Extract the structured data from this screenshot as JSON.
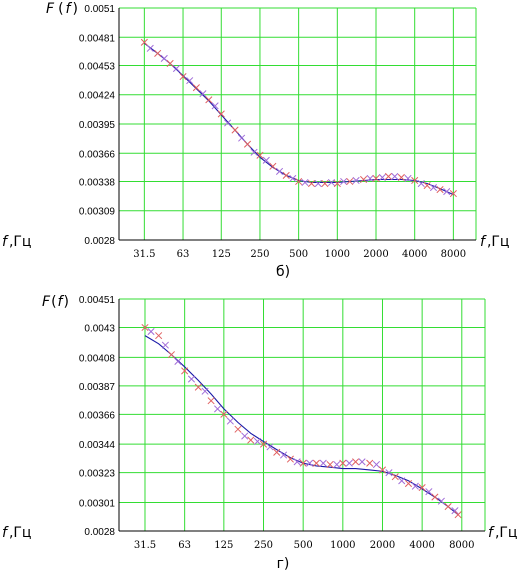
{
  "chart_data": [
    {
      "type": "scatter",
      "panel_label": "б)",
      "y_axis_label": {
        "func": "F",
        "paren_open": "(",
        "var": "f",
        "paren_close": ")"
      },
      "x_axis_label_left": {
        "var": "f",
        "unit": ",Гц"
      },
      "x_axis_label_right": {
        "var": "f",
        "unit": ",Гц"
      },
      "x_scale": "log2",
      "xlim": [
        20,
        12000
      ],
      "ylim": [
        0.0028,
        0.0051
      ],
      "y_ticks": [
        "0.0028",
        "0.00309",
        "0.00338",
        "0.00366",
        "0.00395",
        "0.00424",
        "0.00453",
        "0.00481",
        "0.0051"
      ],
      "x_ticks": [
        "31.5",
        "63",
        "125",
        "250",
        "500",
        "1000",
        "2000",
        "4000",
        "8000"
      ],
      "grid": true,
      "colors": {
        "grid": "#33dd33",
        "fit": "#1a1aa8",
        "marker_a": "#e06060",
        "marker_b": "#a06cd8",
        "axis": "#000000"
      },
      "series": [
        {
          "role": "fit-curve",
          "x": [
            31.5,
            40,
            50,
            63,
            80,
            100,
            125,
            160,
            200,
            250,
            315,
            400,
            500,
            630,
            800,
            1000,
            1250,
            1600,
            2000,
            2500,
            3150,
            4000,
            5000,
            6300,
            8000
          ],
          "y": [
            0.00475,
            0.00465,
            0.00455,
            0.00443,
            0.0043,
            0.00418,
            0.00404,
            0.00389,
            0.00375,
            0.00362,
            0.00352,
            0.00344,
            0.00339,
            0.00337,
            0.00337,
            0.00337,
            0.00338,
            0.00339,
            0.0034,
            0.0034,
            0.0034,
            0.00339,
            0.00336,
            0.00331,
            0.00325
          ]
        },
        {
          "role": "measured",
          "marker": "x",
          "x": [
            31.5,
            35,
            40,
            45,
            50,
            56,
            63,
            71,
            80,
            90,
            100,
            112,
            125,
            140,
            160,
            180,
            200,
            225,
            250,
            280,
            315,
            355,
            400,
            450,
            500,
            560,
            630,
            710,
            800,
            900,
            1000,
            1120,
            1250,
            1400,
            1600,
            1800,
            2000,
            2240,
            2500,
            2800,
            3150,
            3550,
            4000,
            4500,
            5000,
            5600,
            6300,
            7100,
            8000
          ],
          "y": [
            0.00476,
            0.0047,
            0.00465,
            0.0046,
            0.00455,
            0.0045,
            0.00442,
            0.00438,
            0.00431,
            0.00425,
            0.00419,
            0.00413,
            0.00405,
            0.00396,
            0.00389,
            0.00381,
            0.00375,
            0.00367,
            0.00364,
            0.00359,
            0.00353,
            0.00348,
            0.00344,
            0.00341,
            0.00338,
            0.00337,
            0.00336,
            0.00336,
            0.00336,
            0.00337,
            0.00336,
            0.00338,
            0.00338,
            0.00339,
            0.0034,
            0.00341,
            0.00341,
            0.00342,
            0.00343,
            0.00343,
            0.00342,
            0.00341,
            0.00339,
            0.00336,
            0.00334,
            0.00332,
            0.0033,
            0.00328,
            0.00326
          ]
        }
      ]
    },
    {
      "type": "scatter",
      "panel_label": "г)",
      "y_axis_label": {
        "func": "F",
        "paren_open": "(",
        "var": "f",
        "paren_close": ")"
      },
      "x_axis_label_left": {
        "var": "f",
        "unit": ",Гц"
      },
      "x_axis_label_right": {
        "var": "f",
        "unit": ",Гц"
      },
      "x_scale": "log2",
      "xlim": [
        20,
        12000
      ],
      "ylim": [
        0.0028,
        0.00451
      ],
      "y_ticks": [
        "0.0028",
        "0.00301",
        "0.00323",
        "0.00344",
        "0.00366",
        "0.00387",
        "0.00408",
        "0.0043",
        "0.00451"
      ],
      "x_ticks": [
        "31.5",
        "63",
        "125",
        "250",
        "500",
        "1000",
        "2000",
        "4000",
        "8000"
      ],
      "grid": true,
      "colors": {
        "grid": "#33dd33",
        "fit": "#1a1aa8",
        "marker_a": "#e06060",
        "marker_b": "#a06cd8",
        "axis": "#000000"
      },
      "series": [
        {
          "role": "fit-curve",
          "x": [
            31.5,
            40,
            50,
            63,
            80,
            100,
            125,
            160,
            200,
            250,
            315,
            400,
            500,
            630,
            800,
            1000,
            1250,
            1600,
            2000,
            2500,
            3150,
            4000,
            5000,
            6300,
            7500
          ],
          "y": [
            0.00424,
            0.00418,
            0.0041,
            0.00401,
            0.00391,
            0.00381,
            0.0037,
            0.0036,
            0.00352,
            0.00346,
            0.0034,
            0.00334,
            0.0033,
            0.00328,
            0.00327,
            0.00326,
            0.00326,
            0.00325,
            0.00324,
            0.00321,
            0.00317,
            0.00311,
            0.00305,
            0.00298,
            0.00292
          ]
        },
        {
          "role": "measured",
          "marker": "x",
          "x": [
            31.5,
            35,
            40,
            45,
            50,
            56,
            63,
            71,
            80,
            90,
            100,
            112,
            125,
            140,
            160,
            180,
            200,
            225,
            250,
            280,
            315,
            355,
            400,
            450,
            500,
            560,
            630,
            710,
            800,
            900,
            1000,
            1120,
            1250,
            1400,
            1600,
            1800,
            2000,
            2240,
            2500,
            2800,
            3150,
            3550,
            4000,
            4500,
            5000,
            5600,
            6300,
            7100,
            7500
          ],
          "y": [
            0.0043,
            0.00427,
            0.00424,
            0.00417,
            0.0041,
            0.00405,
            0.00398,
            0.00392,
            0.00386,
            0.00383,
            0.00376,
            0.0037,
            0.00366,
            0.00361,
            0.00355,
            0.0035,
            0.00347,
            0.00346,
            0.00344,
            0.00342,
            0.00338,
            0.00336,
            0.00333,
            0.00331,
            0.0033,
            0.0033,
            0.0033,
            0.0033,
            0.00329,
            0.00329,
            0.0033,
            0.0033,
            0.00331,
            0.00331,
            0.0033,
            0.00329,
            0.00325,
            0.00323,
            0.0032,
            0.00317,
            0.00315,
            0.00313,
            0.00312,
            0.00309,
            0.00305,
            0.00302,
            0.00298,
            0.00295,
            0.00292
          ]
        }
      ]
    }
  ]
}
